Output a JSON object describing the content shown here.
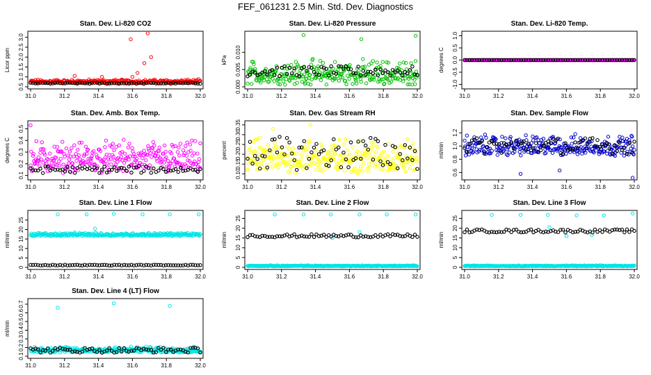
{
  "title": "FEF_061231  2.5 Min. Std. Dev. Diagnostics",
  "colors": {
    "black": "#000000"
  },
  "chart_data": [
    {
      "type": "scatter",
      "title": "Stan. Dev. Li-820 CO2",
      "ylabel": "Licor ppm",
      "color": "#ff0000",
      "xlim": [
        31.0,
        32.0
      ],
      "ylim": [
        0.5,
        3.2
      ],
      "xticks": [
        31.0,
        31.2,
        31.4,
        31.6,
        31.8,
        32.0
      ],
      "xticklabels": [
        "31.0",
        "31.2",
        "31.4",
        "31.6",
        "31.8",
        "32.0"
      ],
      "yticks": [
        0.5,
        1.0,
        1.5,
        2.0,
        2.5,
        3.0
      ],
      "yticklabels": [
        "0.5",
        "1.0",
        "1.5",
        "2.0",
        "2.5",
        "3.0"
      ],
      "colored": {
        "base": 0.67,
        "spread": 0.22,
        "outliers": [
          [
            31.59,
            2.9
          ],
          [
            31.67,
            1.7
          ],
          [
            31.63,
            1.2
          ],
          [
            31.6,
            1.0
          ],
          [
            31.69,
            3.2
          ],
          [
            31.71,
            2.0
          ],
          [
            31.26,
            1.05
          ],
          [
            31.42,
            1.0
          ]
        ]
      },
      "black": {
        "base": 0.65,
        "spread": 0.06
      },
      "grid": false
    },
    {
      "type": "scatter",
      "title": "Stan. Dev. Li-820 Pressure",
      "ylabel": "kPa",
      "color": "#00c000",
      "xlim": [
        31.0,
        32.0
      ],
      "ylim": [
        0.0,
        0.0155
      ],
      "xticks": [
        31.0,
        31.2,
        31.4,
        31.6,
        31.8,
        32.0
      ],
      "xticklabels": [
        "31.0",
        "31.2",
        "31.4",
        "31.6",
        "31.8",
        "32.0"
      ],
      "yticks": [
        0.0,
        0.005,
        0.01
      ],
      "yticklabels": [
        "0.000",
        "0.005",
        "0.010"
      ],
      "colored": {
        "base": 0.0005,
        "spread": 0.008,
        "outliers": [
          [
            31.33,
            0.015
          ],
          [
            31.67,
            0.0138
          ],
          [
            31.99,
            0.0148
          ]
        ]
      },
      "black": {
        "base": 0.003,
        "spread": 0.003
      },
      "grid": false
    },
    {
      "type": "scatter",
      "title": "Stan. Dev. Li-820 Temp.",
      "ylabel": "degrees C",
      "color": "#ff00ff",
      "xlim": [
        31.0,
        32.0
      ],
      "ylim": [
        -1.1,
        1.1
      ],
      "xticks": [
        31.0,
        31.2,
        31.4,
        31.6,
        31.8,
        32.0
      ],
      "xticklabels": [
        "31.0",
        "31.2",
        "31.4",
        "31.6",
        "31.8",
        "32.0"
      ],
      "yticks": [
        -1.0,
        -0.5,
        0.0,
        0.5,
        1.0
      ],
      "yticklabels": [
        "-1.0",
        "-0.5",
        "0.0",
        "0.5",
        "1.0"
      ],
      "colored": {
        "base": 0.0,
        "spread": 0.0,
        "outliers": []
      },
      "black": {
        "base": 0.0,
        "spread": 0.0
      },
      "grid": false
    },
    {
      "type": "scatter",
      "title": "Stan. Dev. Amb. Box Temp.",
      "ylabel": "degrees C",
      "color": "#ff00ff",
      "xlim": [
        31.0,
        32.0
      ],
      "ylim": [
        0.08,
        0.55
      ],
      "xticks": [
        31.0,
        31.2,
        31.4,
        31.6,
        31.8,
        32.0
      ],
      "xticklabels": [
        "31.0",
        "31.2",
        "31.4",
        "31.6",
        "31.8",
        "32.0"
      ],
      "yticks": [
        0.1,
        0.2,
        0.3,
        0.4,
        0.5
      ],
      "yticklabels": [
        "0.1",
        "0.2",
        "0.3",
        "0.4",
        "0.5"
      ],
      "colored": {
        "base": 0.12,
        "spread": 0.3,
        "outliers": [
          [
            31.0,
            0.53
          ]
        ]
      },
      "black": {
        "base": 0.12,
        "spread": 0.06
      },
      "grid": false
    },
    {
      "type": "scatter",
      "title": "Stan. Dev. Gas Stream RH",
      "ylabel": "percent",
      "color": "#ffff00",
      "xlim": [
        31.0,
        32.0
      ],
      "ylim": [
        0.08,
        0.36
      ],
      "xticks": [
        31.0,
        31.2,
        31.4,
        31.6,
        31.8,
        32.0
      ],
      "xticklabels": [
        "31.0",
        "31.2",
        "31.4",
        "31.6",
        "31.8",
        "32.0"
      ],
      "yticks": [
        0.1,
        0.15,
        0.2,
        0.25,
        0.3,
        0.35
      ],
      "yticklabels": [
        "0.10",
        "0.15",
        "0.20",
        "0.25",
        "0.30",
        "0.35"
      ],
      "colored": {
        "base": 0.1,
        "spread": 0.2,
        "outliers": [
          [
            31.15,
            0.33
          ],
          [
            31.37,
            0.35
          ]
        ]
      },
      "black": {
        "base": 0.12,
        "spread": 0.17
      },
      "grid": false
    },
    {
      "type": "scatter",
      "title": "Stan. Dev. Sample Flow",
      "ylabel": "ml/min",
      "color": "#0000c8",
      "xlim": [
        31.0,
        32.0
      ],
      "ylim": [
        0.52,
        1.35
      ],
      "xticks": [
        31.0,
        31.2,
        31.4,
        31.6,
        31.8,
        32.0
      ],
      "xticklabels": [
        "31.0",
        "31.2",
        "31.4",
        "31.6",
        "31.8",
        "32.0"
      ],
      "yticks": [
        0.6,
        0.8,
        1.0,
        1.2
      ],
      "yticklabels": [
        "0.6",
        "0.8",
        "1.0",
        "1.2"
      ],
      "colored": {
        "base": 0.85,
        "spread": 0.35,
        "outliers": [
          [
            31.33,
            0.58
          ],
          [
            31.56,
            0.63
          ],
          [
            31.99,
            0.52
          ]
        ]
      },
      "black": {
        "base": 0.88,
        "spread": 0.25
      },
      "grid": false
    },
    {
      "type": "scatter",
      "title": "Stan. Dev. Line 1 Flow",
      "ylabel": "ml/min",
      "color": "#00e5e5",
      "xlim": [
        31.0,
        32.0
      ],
      "ylim": [
        0,
        29
      ],
      "xticks": [
        31.0,
        31.2,
        31.4,
        31.6,
        31.8,
        32.0
      ],
      "xticklabels": [
        "31.0",
        "31.2",
        "31.4",
        "31.6",
        "31.8",
        "32.0"
      ],
      "yticks": [
        0,
        5,
        10,
        15,
        20,
        25
      ],
      "yticklabels": [
        "0",
        "5",
        "10",
        "15",
        "20",
        "25"
      ],
      "colored": {
        "base": 16.5,
        "spread": 2.0,
        "outliers": [
          [
            31.16,
            28.0
          ],
          [
            31.33,
            28.0
          ],
          [
            31.49,
            28.3
          ],
          [
            31.66,
            28.0
          ],
          [
            31.82,
            28.0
          ],
          [
            31.99,
            28.0
          ],
          [
            31.38,
            20.5
          ]
        ]
      },
      "black": {
        "base": 1.0,
        "spread": 0.4
      },
      "grid": false
    },
    {
      "type": "scatter",
      "title": "Stan. Dev. Line 2 Flow",
      "ylabel": "ml/min",
      "color": "#00e5e5",
      "xlim": [
        31.0,
        32.0
      ],
      "ylim": [
        0,
        28
      ],
      "xticks": [
        31.0,
        31.2,
        31.4,
        31.6,
        31.8,
        32.0
      ],
      "xticklabels": [
        "31.0",
        "31.2",
        "31.4",
        "31.6",
        "31.8",
        "32.0"
      ],
      "yticks": [
        0,
        5,
        10,
        15,
        20,
        25
      ],
      "yticklabels": [
        "0",
        "5",
        "10",
        "15",
        "20",
        "25"
      ],
      "colored": {
        "base": 0.5,
        "spread": 0.6,
        "outliers": [
          [
            31.16,
            27.0
          ],
          [
            31.33,
            27.0
          ],
          [
            31.49,
            27.0
          ],
          [
            31.66,
            27.0
          ],
          [
            31.82,
            27.0
          ],
          [
            31.99,
            27.0
          ],
          [
            31.5,
            15.0
          ],
          [
            31.66,
            18.0
          ]
        ]
      },
      "black": {
        "base": 15.3,
        "spread": 1.6
      },
      "grid": false
    },
    {
      "type": "scatter",
      "title": "Stan. Dev. Line 3 Flow",
      "ylabel": "ml/min",
      "color": "#00e5e5",
      "xlim": [
        31.0,
        32.0
      ],
      "ylim": [
        0,
        28
      ],
      "xticks": [
        31.0,
        31.2,
        31.4,
        31.6,
        31.8,
        32.0
      ],
      "xticklabels": [
        "31.0",
        "31.2",
        "31.4",
        "31.6",
        "31.8",
        "32.0"
      ],
      "yticks": [
        0,
        5,
        10,
        15,
        20,
        25
      ],
      "yticklabels": [
        "0",
        "5",
        "10",
        "15",
        "20",
        "25"
      ],
      "colored": {
        "base": 0.5,
        "spread": 0.6,
        "outliers": [
          [
            31.16,
            26.8
          ],
          [
            31.33,
            26.8
          ],
          [
            31.49,
            26.8
          ],
          [
            31.66,
            26.5
          ],
          [
            31.82,
            26.5
          ],
          [
            31.99,
            27.5
          ],
          [
            31.5,
            20.5
          ],
          [
            31.6,
            16.0
          ],
          [
            31.75,
            16.5
          ]
        ]
      },
      "black": {
        "base": 17.8,
        "spread": 1.6
      },
      "grid": false
    },
    {
      "type": "scatter",
      "title": "Stan. Dev. Line 4 (LT) Flow",
      "ylabel": "ml/min",
      "color": "#00e5e5",
      "xlim": [
        31.0,
        32.0
      ],
      "ylim": [
        0.1,
        0.74
      ],
      "xticks": [
        31.0,
        31.2,
        31.4,
        31.6,
        31.8,
        32.0
      ],
      "xticklabels": [
        "31.0",
        "31.2",
        "31.4",
        "31.6",
        "31.8",
        "32.0"
      ],
      "yticks": [
        0.1,
        0.2,
        0.3,
        0.4,
        0.5,
        0.6,
        0.7
      ],
      "yticklabels": [
        "0.1",
        "0.2",
        "0.3",
        "0.4",
        "0.5",
        "0.6",
        "0.7"
      ],
      "colored": {
        "base": 0.14,
        "spread": 0.08,
        "outliers": [
          [
            31.16,
            0.66
          ],
          [
            31.49,
            0.71
          ],
          [
            31.82,
            0.68
          ]
        ]
      },
      "black": {
        "base": 0.14,
        "spread": 0.06
      },
      "grid": false
    }
  ]
}
